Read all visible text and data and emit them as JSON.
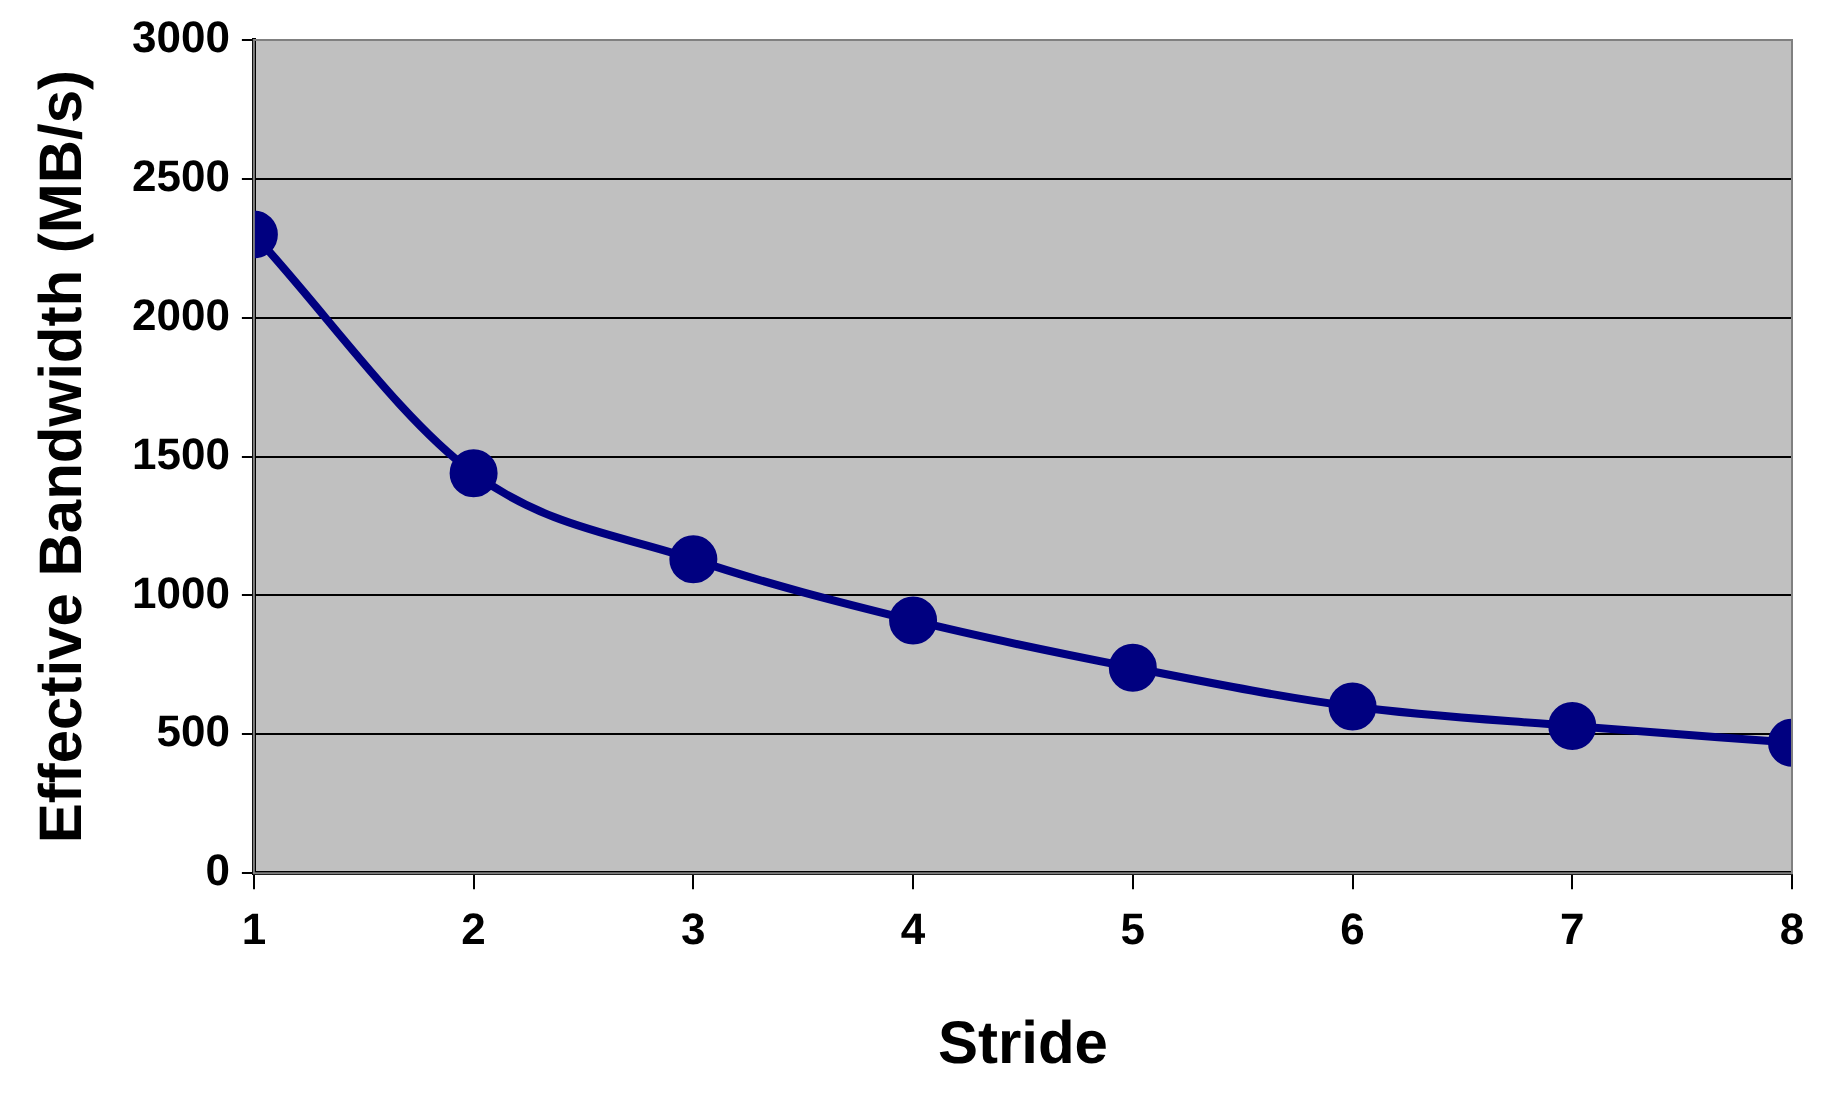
{
  "chart_data": {
    "type": "line",
    "xlabel": "Stride",
    "ylabel": "Effective Bandwidth (MB/s)",
    "x": [
      1,
      2,
      3,
      4,
      5,
      6,
      7,
      8
    ],
    "series": [
      {
        "color": "#000080",
        "values": [
          2300,
          1440,
          1130,
          910,
          740,
          600,
          530,
          470
        ]
      }
    ],
    "xlim": [
      1,
      8
    ],
    "xticks": [
      1,
      2,
      3,
      4,
      5,
      6,
      7,
      8
    ],
    "ylim": [
      0,
      3000
    ],
    "yticks": [
      0,
      500,
      1000,
      1500,
      2000,
      2500,
      3000
    ],
    "grid": "y",
    "legend": false,
    "marker": "circle",
    "line_style": "solid"
  }
}
